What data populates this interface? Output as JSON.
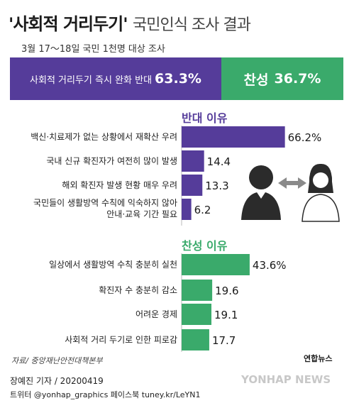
{
  "title_main": "'사회적 거리두기'",
  "title_sub": "국민인식 조사 결과",
  "subtitle": "3월 17～18일 국민 1천명 대상 조사",
  "colors": {
    "oppose": "#553c9a",
    "support": "#3aaa6b",
    "text": "#222222"
  },
  "topbar": {
    "oppose_label": "사회적 거리두기 즉시 완화 반대",
    "oppose_value": "63.3%",
    "support_label": "찬성",
    "support_value": "36.7%"
  },
  "chart_data": [
    {
      "type": "bar",
      "title": "반대 이유",
      "categories": [
        "백신·치료제가 없는 상황에서 재확산 우려",
        "국내 신규 확진자가 여전히 많이 발생",
        "해외 확진자 발생 현황 매우 우려",
        "국민들이 생활방역 수칙에 익숙하지 않아 안내·교육 기간 필요"
      ],
      "values": [
        66.2,
        14.4,
        13.3,
        6.2
      ],
      "value_labels": [
        "66.2%",
        "14.4",
        "13.3",
        "6.2"
      ]
    },
    {
      "type": "bar",
      "title": "찬성 이유",
      "categories": [
        "일상에서 생활방역 수칙 충분히 실천",
        "확진자 수 충분히 감소",
        "어려운 경제",
        "사회적 거리 두기로 인한 피로감"
      ],
      "values": [
        43.6,
        19.6,
        19.1,
        17.7
      ],
      "value_labels": [
        "43.6%",
        "19.6",
        "19.1",
        "17.7"
      ]
    }
  ],
  "source": "자료/ 중앙재난안전대책본부",
  "logo": "연합뉴스",
  "footer": {
    "author": "장예진 기자 / 20200419",
    "social": "트위터 @yonhap_graphics  페이스북 tuney.kr/LeYN1"
  },
  "watermark": "YONHAP NEWS"
}
